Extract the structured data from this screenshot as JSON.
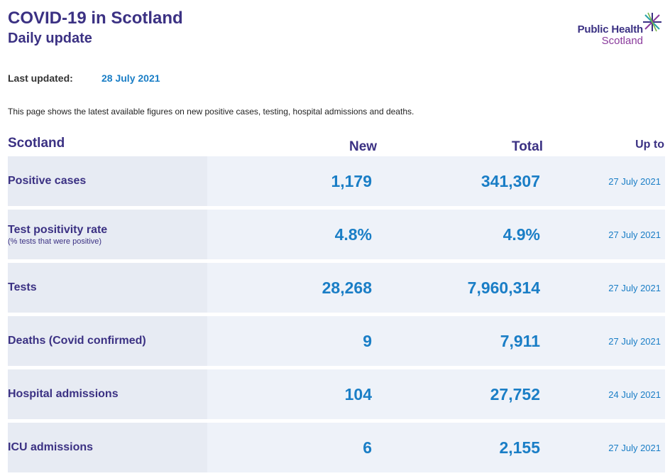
{
  "header": {
    "title": "COVID-19 in Scotland",
    "subtitle": "Daily update"
  },
  "logo": {
    "line1": "Public Health",
    "line2": "Scotland"
  },
  "updated": {
    "label": "Last updated:",
    "value": "28 July 2021"
  },
  "intro": "This page shows the latest available figures on new positive cases, testing, hospital admissions and deaths.",
  "table": {
    "headers": {
      "region": "Scotland",
      "new": "New",
      "total": "Total",
      "up_to": "Up to"
    },
    "rows": [
      {
        "label": "Positive cases",
        "sublabel": "",
        "new": "1,179",
        "total": "341,307",
        "date": "27 July 2021"
      },
      {
        "label": "Test positivity rate",
        "sublabel": "(% tests that were positive)",
        "new": "4.8%",
        "total": "4.9%",
        "date": "27 July 2021"
      },
      {
        "label": "Tests",
        "sublabel": "",
        "new": "28,268",
        "total": "7,960,314",
        "date": "27 July 2021"
      },
      {
        "label": "Deaths (Covid confirmed)",
        "sublabel": "",
        "new": "9",
        "total": "7,911",
        "date": "27 July 2021"
      },
      {
        "label": "Hospital admissions",
        "sublabel": "",
        "new": "104",
        "total": "27,752",
        "date": "24 July 2021"
      },
      {
        "label": "ICU admissions",
        "sublabel": "",
        "new": "6",
        "total": "2,155",
        "date": "27 July 2021"
      }
    ]
  },
  "colors": {
    "brand_purple": "#3b3183",
    "value_blue": "#1a7ec6",
    "row_label_bg": "#e7ebf3",
    "row_value_bg": "#eef2f9"
  }
}
